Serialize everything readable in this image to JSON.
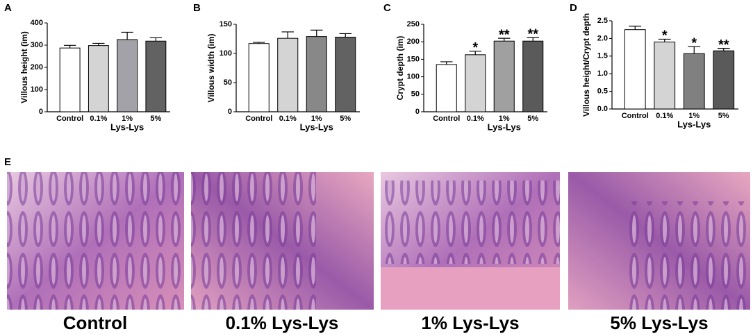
{
  "chart_data": [
    {
      "type": "bar",
      "panel": "A",
      "ylabel": "Villous height (ìm)",
      "xlabel": "Lys-Lys",
      "categories": [
        "Control",
        "0.1%",
        "1%",
        "5%"
      ],
      "values": [
        287,
        298,
        325,
        318
      ],
      "errors": [
        12,
        10,
        33,
        15
      ],
      "colors": [
        "#ffffff",
        "#d4d4d4",
        "#a2a2a8",
        "#626262"
      ],
      "ylim": [
        0,
        400
      ],
      "yticks": [
        0,
        100,
        200,
        300,
        400
      ]
    },
    {
      "type": "bar",
      "panel": "B",
      "ylabel": "Villous width (ìm)",
      "xlabel": "Lys-Lys",
      "categories": [
        "Control",
        "0.1%",
        "1%",
        "5%"
      ],
      "values": [
        117,
        126,
        129,
        128
      ],
      "errors": [
        2,
        11,
        11,
        6
      ],
      "colors": [
        "#ffffff",
        "#d4d4d4",
        "#888888",
        "#626262"
      ],
      "ylim": [
        0,
        150
      ],
      "yticks": [
        0,
        50,
        100,
        150
      ]
    },
    {
      "type": "bar",
      "panel": "C",
      "ylabel": "Crypt depth (ìm)",
      "xlabel": "Lys-Lys",
      "categories": [
        "Control",
        "0.1%",
        "1%",
        "5%"
      ],
      "values": [
        135,
        163,
        202,
        202
      ],
      "errors": [
        8,
        10,
        8,
        10
      ],
      "annotations": [
        null,
        "*",
        "**",
        "**"
      ],
      "colors": [
        "#ffffff",
        "#d4d4d4",
        "#a0a0a0",
        "#5a5a5a"
      ],
      "ylim": [
        0,
        250
      ],
      "yticks": [
        0,
        50,
        100,
        150,
        200,
        250
      ]
    },
    {
      "type": "bar",
      "panel": "D",
      "ylabel": "Villous height/Crypt depth",
      "xlabel": "Lys-Lys",
      "categories": [
        "Control",
        "0.1%",
        "1%",
        "5%"
      ],
      "values": [
        2.25,
        1.9,
        1.57,
        1.65
      ],
      "errors": [
        0.1,
        0.08,
        0.2,
        0.07
      ],
      "annotations": [
        null,
        "*",
        "*",
        "**"
      ],
      "colors": [
        "#ffffff",
        "#d4d4d4",
        "#808080",
        "#5a5a5a"
      ],
      "ylim": [
        0,
        2.5
      ],
      "yticks": [
        {
          "value": 0,
          "label": "0.0"
        },
        0.5,
        {
          "value": 1,
          "label": "1.0"
        },
        1.5,
        {
          "value": 2,
          "label": "2.0"
        },
        2.5
      ]
    }
  ],
  "panel_e": {
    "label": "E",
    "captions": [
      "Control",
      "0.1% Lys-Lys",
      "1% Lys-Lys",
      "5% Lys-Lys"
    ]
  }
}
